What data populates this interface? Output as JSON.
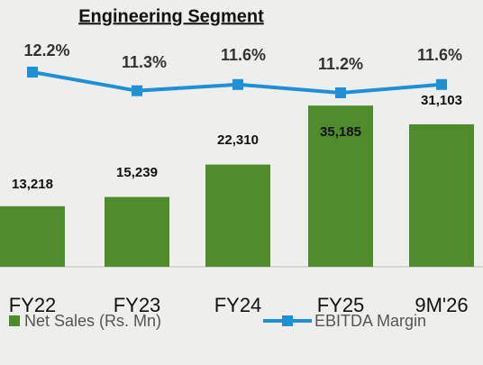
{
  "chart_data": {
    "type": "bar_line",
    "title": "Engineering Segment",
    "categories": [
      "FY22",
      "FY23",
      "FY24",
      "FY25",
      "9M'26"
    ],
    "ylim": [
      0,
      42500
    ],
    "y2lim": [
      2.8,
      12.2
    ],
    "series": [
      {
        "name": "Net Sales (Rs. Mn)",
        "type": "bar",
        "color": "#4f8a2b",
        "values": [
          13218,
          15239,
          22310,
          35185,
          31103
        ],
        "value_labels": [
          "13,218",
          "15,239",
          "22,310",
          "35,185",
          "31,103"
        ]
      },
      {
        "name": "EBITDA Margin",
        "type": "line",
        "axis": "y2",
        "color": "#1f8fd6",
        "values": [
          12.2,
          11.3,
          11.6,
          11.2,
          11.6
        ],
        "value_labels": [
          "12.2%",
          "11.3%",
          "11.6%",
          "11.2%",
          "11.6%"
        ]
      }
    ]
  }
}
